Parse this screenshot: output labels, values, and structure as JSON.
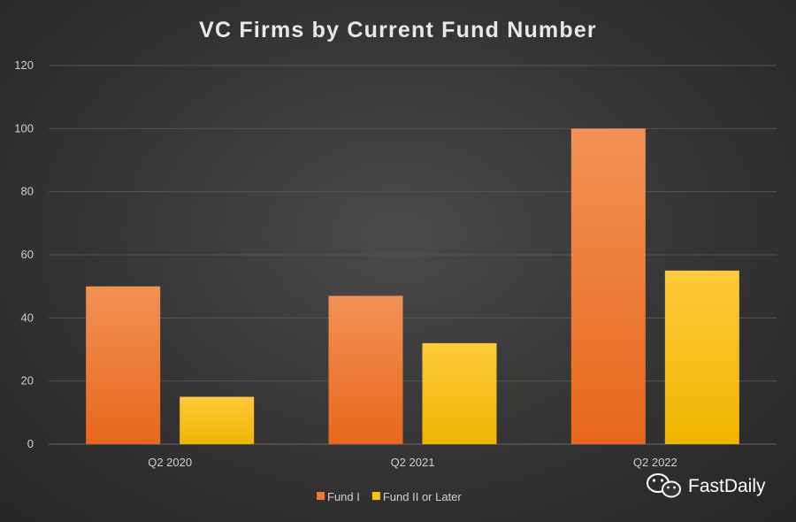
{
  "chart_data": {
    "type": "bar",
    "title": "VC Firms by Current Fund Number",
    "categories": [
      "Q2 2020",
      "Q2 2021",
      "Q2 2022"
    ],
    "series": [
      {
        "name": "Fund I",
        "values": [
          50,
          47,
          100
        ]
      },
      {
        "name": "Fund II or Later",
        "values": [
          15,
          32,
          55
        ]
      }
    ],
    "ylim": [
      0,
      120
    ],
    "yticks": [
      0,
      20,
      40,
      60,
      80,
      100,
      120
    ],
    "grid": true,
    "legend_position": "bottom",
    "colors": {
      "Fund I": "#f07a2a",
      "Fund II or Later": "#ffc000"
    }
  },
  "watermark": {
    "text": "FastDaily",
    "icon": "wechat-icon"
  }
}
